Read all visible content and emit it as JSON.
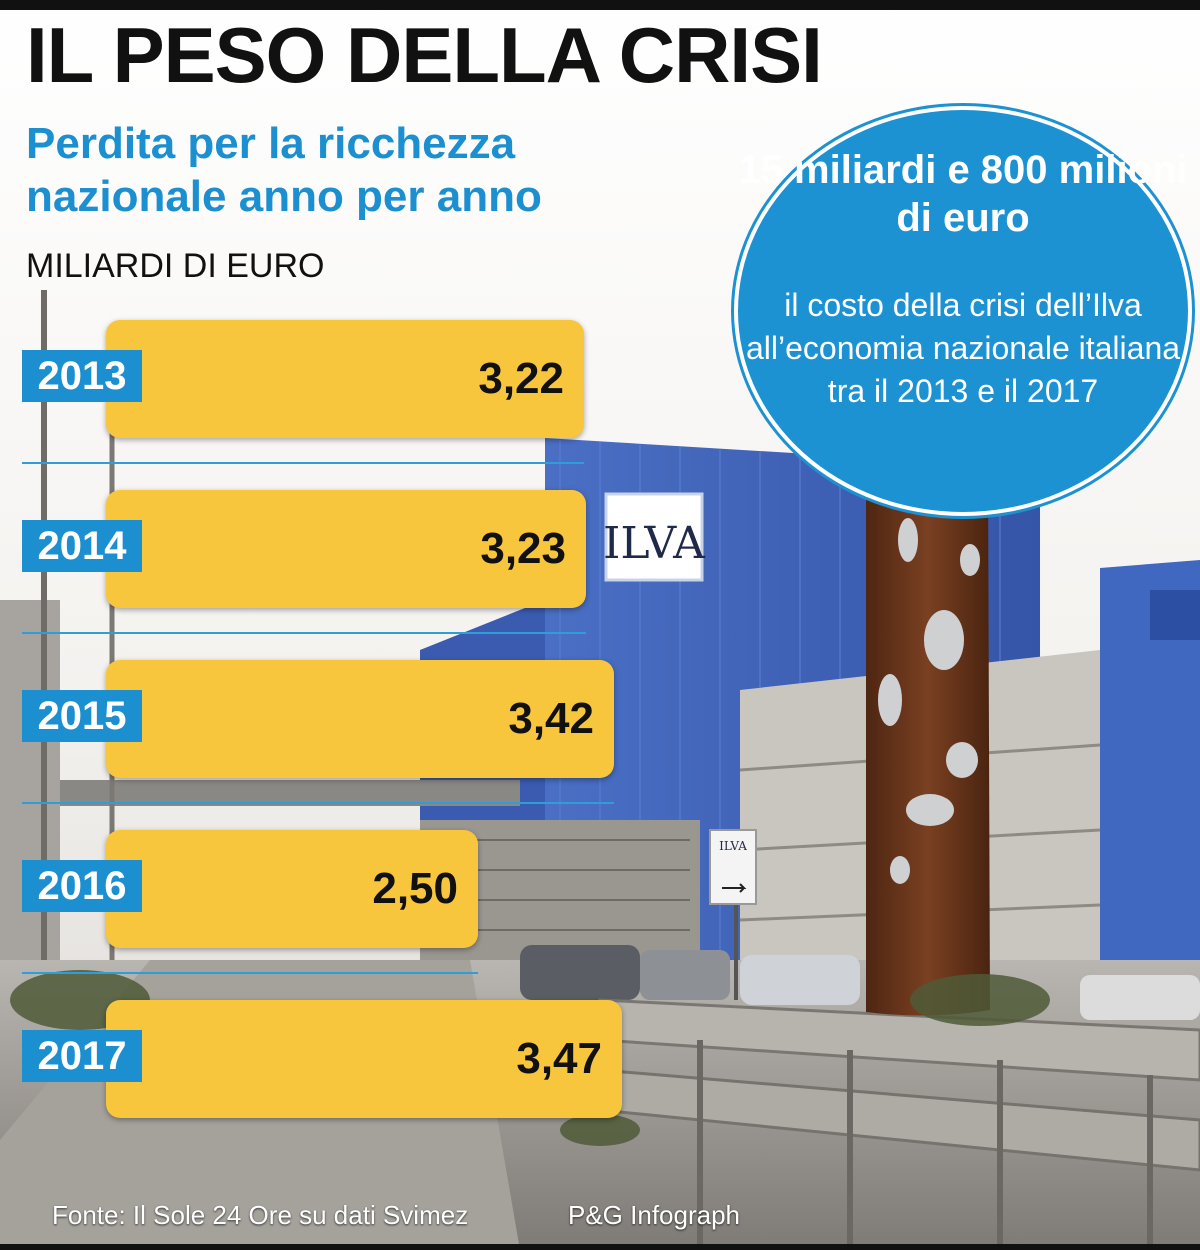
{
  "header": {
    "title": "IL PESO DELLA CRISI",
    "subtitle": "Perdita per la ricchezza nazionale anno per anno",
    "unit": "MILIARDI DI EURO"
  },
  "chart_data": {
    "type": "bar",
    "orientation": "horizontal",
    "categories": [
      "2013",
      "2014",
      "2015",
      "2016",
      "2017"
    ],
    "values": [
      3.22,
      3.23,
      3.42,
      2.5,
      3.47
    ],
    "value_labels": [
      "3,22",
      "3,23",
      "3,42",
      "2,50",
      "3,47"
    ],
    "title": "Perdita per la ricchezza nazionale anno per anno",
    "ylabel": "MILIARDI DI EURO",
    "legend": "none",
    "grid": false
  },
  "callout": {
    "headline": "15 miliardi e 800 milioni di euro",
    "body": "il costo della crisi dell’Ilva all’economia nazionale italiana tra il 2013 e il 2017"
  },
  "photo": {
    "building_sign": "ILVA",
    "road_sign": "ILVA"
  },
  "footer": {
    "source": "Fonte: Il Sole 24 Ore su dati Svimez",
    "credit": "P&G Infograph"
  },
  "colors": {
    "accent_blue": "#1b8fd0",
    "bar_yellow": "#f8c63d",
    "title_black": "#111111",
    "building_blue": "#3f63b8",
    "rust": "#6e3a1f"
  }
}
